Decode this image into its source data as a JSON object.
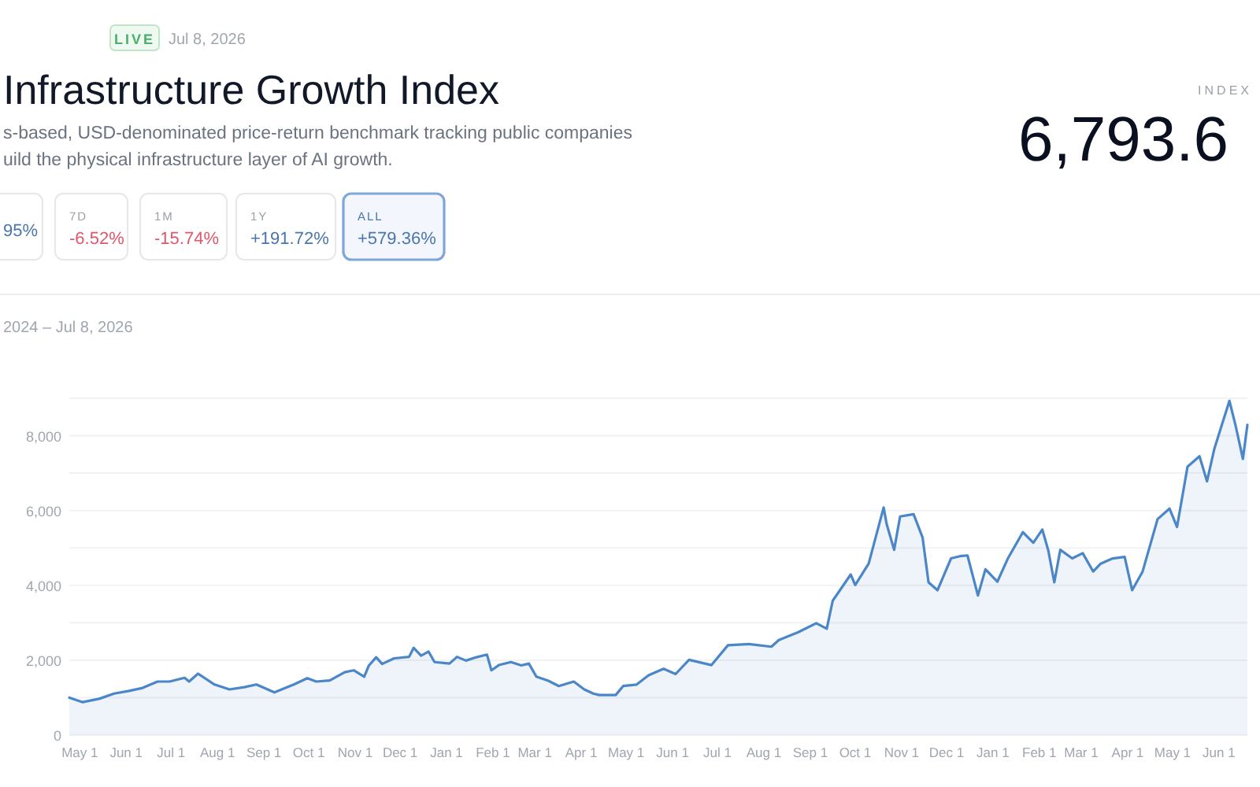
{
  "chart_data": {
    "type": "area",
    "title": "Infrastructure Growth Index",
    "subtitle": "s-based, USD-denominated price-return benchmark tracking public companies\nuild the physical infrastructure layer of AI growth.",
    "annotations": [
      "LIVE",
      "Jul 8, 2026",
      "95%",
      "7D",
      "-6.52%",
      "1M",
      "-15.74%",
      "1Y",
      "+191.72%",
      "ALL",
      "+579.36%",
      "INDEX",
      "6,793.6",
      "2024 – Jul 8, 2026"
    ],
    "x": [
      "2024-04-24",
      "2024-05-03",
      "2024-05-14",
      "2024-05-24",
      "2024-06-03",
      "2024-06-12",
      "2024-06-22",
      "2024-06-30",
      "2024-07-10",
      "2024-07-13",
      "2024-07-19",
      "2024-07-30",
      "2024-08-09",
      "2024-08-19",
      "2024-08-27",
      "2024-09-08",
      "2024-09-21",
      "2024-09-30",
      "2024-10-06",
      "2024-10-15",
      "2024-10-25",
      "2024-10-31",
      "2024-11-07",
      "2024-11-10",
      "2024-11-15",
      "2024-11-19",
      "2024-11-27",
      "2024-12-07",
      "2024-12-10",
      "2024-12-15",
      "2024-12-20",
      "2024-12-24",
      "2025-01-03",
      "2025-01-08",
      "2025-01-14",
      "2025-01-21",
      "2025-01-28",
      "2025-01-31",
      "2025-02-05",
      "2025-02-13",
      "2025-02-20",
      "2025-02-25",
      "2025-03-02",
      "2025-03-10",
      "2025-03-17",
      "2025-03-27",
      "2025-04-03",
      "2025-04-09",
      "2025-04-13",
      "2025-04-24",
      "2025-04-29",
      "2025-05-08",
      "2025-05-16",
      "2025-05-26",
      "2025-06-03",
      "2025-06-12",
      "2025-06-27",
      "2025-07-08",
      "2025-07-22",
      "2025-08-06",
      "2025-08-11",
      "2025-08-24",
      "2025-09-05",
      "2025-09-12",
      "2025-09-16",
      "2025-09-28",
      "2025-10-01",
      "2025-10-10",
      "2025-10-20",
      "2025-10-22",
      "2025-10-27",
      "2025-10-31",
      "2025-11-09",
      "2025-11-15",
      "2025-11-19",
      "2025-11-25",
      "2025-12-04",
      "2025-12-10",
      "2025-12-15",
      "2025-12-22",
      "2025-12-27",
      "2026-01-04",
      "2026-01-11",
      "2026-01-21",
      "2026-01-28",
      "2026-02-03",
      "2026-02-07",
      "2026-02-11",
      "2026-02-15",
      "2026-02-23",
      "2026-03-02",
      "2026-03-09",
      "2026-03-14",
      "2026-03-22",
      "2026-03-30",
      "2026-04-04",
      "2026-04-11",
      "2026-04-21",
      "2026-04-29",
      "2026-05-04",
      "2026-05-11",
      "2026-05-19",
      "2026-05-24",
      "2026-05-29",
      "2026-06-08",
      "2026-06-12",
      "2026-06-17",
      "2026-06-20"
    ],
    "series": [
      {
        "color": "#4a86c8",
        "values": [
          1000,
          880,
          970,
          1110,
          1180,
          1260,
          1430,
          1430,
          1530,
          1430,
          1640,
          1350,
          1220,
          1280,
          1350,
          1140,
          1350,
          1520,
          1430,
          1460,
          1680,
          1730,
          1560,
          1850,
          2080,
          1900,
          2050,
          2090,
          2330,
          2120,
          2230,
          1950,
          1910,
          2090,
          1990,
          2080,
          2150,
          1730,
          1870,
          1950,
          1860,
          1910,
          1560,
          1450,
          1310,
          1430,
          1220,
          1110,
          1070,
          1070,
          1310,
          1350,
          1600,
          1770,
          1630,
          2010,
          1870,
          2400,
          2430,
          2360,
          2540,
          2750,
          2990,
          2840,
          3590,
          4290,
          4010,
          4580,
          6080,
          5640,
          4950,
          5840,
          5900,
          5280,
          4080,
          3870,
          4720,
          4780,
          4800,
          3730,
          4430,
          4100,
          4720,
          5420,
          5140,
          5490,
          4930,
          4080,
          4950,
          4720,
          4860,
          4370,
          4580,
          4720,
          4760,
          3870,
          4370,
          5770,
          6050,
          5560,
          7170,
          7450,
          6780,
          7660,
          8930,
          8290,
          7380,
          8290
        ]
      }
    ],
    "xlim": [
      "2024-04-24",
      "2026-06-20"
    ],
    "xticks": [
      {
        "value": "2024-05-01",
        "label": "May 1"
      },
      {
        "value": "2024-06-01",
        "label": "Jun 1"
      },
      {
        "value": "2024-07-01",
        "label": "Jul 1"
      },
      {
        "value": "2024-08-01",
        "label": "Aug 1"
      },
      {
        "value": "2024-09-01",
        "label": "Sep 1"
      },
      {
        "value": "2024-10-01",
        "label": "Oct 1"
      },
      {
        "value": "2024-11-01",
        "label": "Nov 1"
      },
      {
        "value": "2024-12-01",
        "label": "Dec 1"
      },
      {
        "value": "2025-01-01",
        "label": "Jan 1"
      },
      {
        "value": "2025-02-01",
        "label": "Feb 1"
      },
      {
        "value": "2025-03-01",
        "label": "Mar 1"
      },
      {
        "value": "2025-04-01",
        "label": "Apr 1"
      },
      {
        "value": "2025-05-01",
        "label": "May 1"
      },
      {
        "value": "2025-06-01",
        "label": "Jun 1"
      },
      {
        "value": "2025-07-01",
        "label": "Jul 1"
      },
      {
        "value": "2025-08-01",
        "label": "Aug 1"
      },
      {
        "value": "2025-09-01",
        "label": "Sep 1"
      },
      {
        "value": "2025-10-01",
        "label": "Oct 1"
      },
      {
        "value": "2025-11-01",
        "label": "Nov 1"
      },
      {
        "value": "2025-12-01",
        "label": "Dec 1"
      },
      {
        "value": "2026-01-01",
        "label": "Jan 1"
      },
      {
        "value": "2026-02-01",
        "label": "Feb 1"
      },
      {
        "value": "2026-03-01",
        "label": "Mar 1"
      },
      {
        "value": "2026-04-01",
        "label": "Apr 1"
      },
      {
        "value": "2026-05-01",
        "label": "May 1"
      },
      {
        "value": "2026-06-01",
        "label": "Jun 1"
      }
    ],
    "ylim": [
      0,
      9000
    ],
    "yticks": [
      0,
      {
        "value": 1000,
        "label": null
      },
      {
        "value": 2000,
        "label": "2,000"
      },
      {
        "value": 3000,
        "label": null
      },
      {
        "value": 4000,
        "label": "4,000"
      },
      {
        "value": 5000,
        "label": null
      },
      {
        "value": 6000,
        "label": "6,000"
      },
      {
        "value": 7000,
        "label": null
      },
      {
        "value": 8000,
        "label": "8,000"
      },
      {
        "value": 9000,
        "label": null
      }
    ],
    "grid": "y"
  }
}
